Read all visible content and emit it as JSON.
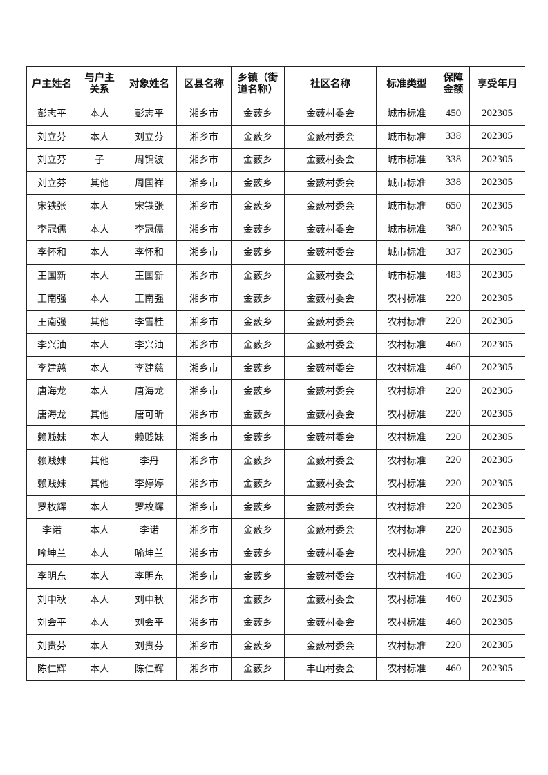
{
  "table": {
    "headers": [
      "户主姓名",
      "与户主关系",
      "对象姓名",
      "区县名称",
      "乡镇（街道名称）",
      "社区名称",
      "标准类型",
      "保障金额",
      "享受年月"
    ],
    "rows": [
      [
        "彭志平",
        "本人",
        "彭志平",
        "湘乡市",
        "金薮乡",
        "金薮村委会",
        "城市标准",
        "450",
        "202305"
      ],
      [
        "刘立芬",
        "本人",
        "刘立芬",
        "湘乡市",
        "金薮乡",
        "金薮村委会",
        "城市标准",
        "338",
        "202305"
      ],
      [
        "刘立芬",
        "子",
        "周锦波",
        "湘乡市",
        "金薮乡",
        "金薮村委会",
        "城市标准",
        "338",
        "202305"
      ],
      [
        "刘立芬",
        "其他",
        "周国祥",
        "湘乡市",
        "金薮乡",
        "金薮村委会",
        "城市标准",
        "338",
        "202305"
      ],
      [
        "宋铁张",
        "本人",
        "宋铁张",
        "湘乡市",
        "金薮乡",
        "金薮村委会",
        "城市标准",
        "650",
        "202305"
      ],
      [
        "李冠儒",
        "本人",
        "李冠儒",
        "湘乡市",
        "金薮乡",
        "金薮村委会",
        "城市标准",
        "380",
        "202305"
      ],
      [
        "李怀和",
        "本人",
        "李怀和",
        "湘乡市",
        "金薮乡",
        "金薮村委会",
        "城市标准",
        "337",
        "202305"
      ],
      [
        "王国新",
        "本人",
        "王国新",
        "湘乡市",
        "金薮乡",
        "金薮村委会",
        "城市标准",
        "483",
        "202305"
      ],
      [
        "王南强",
        "本人",
        "王南强",
        "湘乡市",
        "金薮乡",
        "金薮村委会",
        "农村标准",
        "220",
        "202305"
      ],
      [
        "王南强",
        "其他",
        "李雪桂",
        "湘乡市",
        "金薮乡",
        "金薮村委会",
        "农村标准",
        "220",
        "202305"
      ],
      [
        "李兴油",
        "本人",
        "李兴油",
        "湘乡市",
        "金薮乡",
        "金薮村委会",
        "农村标准",
        "460",
        "202305"
      ],
      [
        "李建慈",
        "本人",
        "李建慈",
        "湘乡市",
        "金薮乡",
        "金薮村委会",
        "农村标准",
        "460",
        "202305"
      ],
      [
        "唐海龙",
        "本人",
        "唐海龙",
        "湘乡市",
        "金薮乡",
        "金薮村委会",
        "农村标准",
        "220",
        "202305"
      ],
      [
        "唐海龙",
        "其他",
        "唐可昕",
        "湘乡市",
        "金薮乡",
        "金薮村委会",
        "农村标准",
        "220",
        "202305"
      ],
      [
        "赖贱妹",
        "本人",
        "赖贱妹",
        "湘乡市",
        "金薮乡",
        "金薮村委会",
        "农村标准",
        "220",
        "202305"
      ],
      [
        "赖贱妹",
        "其他",
        "李丹",
        "湘乡市",
        "金薮乡",
        "金薮村委会",
        "农村标准",
        "220",
        "202305"
      ],
      [
        "赖贱妹",
        "其他",
        "李婷婷",
        "湘乡市",
        "金薮乡",
        "金薮村委会",
        "农村标准",
        "220",
        "202305"
      ],
      [
        "罗枚辉",
        "本人",
        "罗枚辉",
        "湘乡市",
        "金薮乡",
        "金薮村委会",
        "农村标准",
        "220",
        "202305"
      ],
      [
        "李诺",
        "本人",
        "李诺",
        "湘乡市",
        "金薮乡",
        "金薮村委会",
        "农村标准",
        "220",
        "202305"
      ],
      [
        "喻坤兰",
        "本人",
        "喻坤兰",
        "湘乡市",
        "金薮乡",
        "金薮村委会",
        "农村标准",
        "220",
        "202305"
      ],
      [
        "李明东",
        "本人",
        "李明东",
        "湘乡市",
        "金薮乡",
        "金薮村委会",
        "农村标准",
        "460",
        "202305"
      ],
      [
        "刘中秋",
        "本人",
        "刘中秋",
        "湘乡市",
        "金薮乡",
        "金薮村委会",
        "农村标准",
        "460",
        "202305"
      ],
      [
        "刘会平",
        "本人",
        "刘会平",
        "湘乡市",
        "金薮乡",
        "金薮村委会",
        "农村标准",
        "460",
        "202305"
      ],
      [
        "刘贵芬",
        "本人",
        "刘贵芬",
        "湘乡市",
        "金薮乡",
        "金薮村委会",
        "农村标准",
        "220",
        "202305"
      ],
      [
        "陈仁辉",
        "本人",
        "陈仁辉",
        "湘乡市",
        "金薮乡",
        "丰山村委会",
        "农村标准",
        "460",
        "202305"
      ]
    ]
  }
}
